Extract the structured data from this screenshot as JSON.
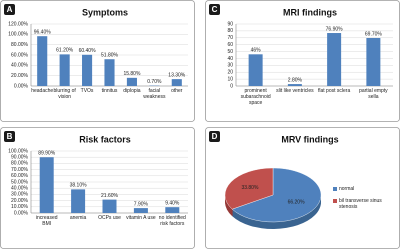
{
  "chart_data": [
    {
      "type": "bar",
      "label": "A",
      "title": "Symptoms",
      "categories": [
        "headache",
        "blurring of vision",
        "TVOs",
        "tinnitus",
        "diplopia",
        "facial weakness",
        "other"
      ],
      "values": [
        96.4,
        61.2,
        60.4,
        51.8,
        15.8,
        0.7,
        13.3
      ],
      "value_labels": [
        "96.40%",
        "61.20%",
        "60.40%",
        "51.80%",
        "15.80%",
        "0.70%",
        "13.30%"
      ],
      "color": "#4f81bd",
      "ylim": [
        0,
        120
      ],
      "yticks": [
        {
          "value": 0,
          "label": "0.00%"
        },
        {
          "value": 20,
          "label": "20.00%"
        },
        {
          "value": 40,
          "label": "40.00%"
        },
        {
          "value": 60,
          "label": "60.00%"
        },
        {
          "value": 80,
          "label": "80.00%"
        },
        {
          "value": 100,
          "label": "100.00%"
        },
        {
          "value": 120,
          "label": "120.00%"
        }
      ],
      "grid": true
    },
    {
      "type": "bar",
      "label": "B",
      "title": "Risk factors",
      "categories": [
        "increased BMI",
        "anemia",
        "OCPs use",
        "vitamin A use",
        "no identified risk factors"
      ],
      "values": [
        89.9,
        38.1,
        21.6,
        7.9,
        9.4
      ],
      "value_labels": [
        "89.90%",
        "38.10%",
        "21.60%",
        "7.90%",
        "9.40%"
      ],
      "color": "#4f81bd",
      "ylim": [
        0,
        100
      ],
      "yticks": [
        {
          "value": 0,
          "label": "0.00%"
        },
        {
          "value": 10,
          "label": "10.00%"
        },
        {
          "value": 20,
          "label": "20.00%"
        },
        {
          "value": 30,
          "label": "30.00%"
        },
        {
          "value": 40,
          "label": "40.00%"
        },
        {
          "value": 50,
          "label": "50.00%"
        },
        {
          "value": 60,
          "label": "60.00%"
        },
        {
          "value": 70,
          "label": "70.00%"
        },
        {
          "value": 80,
          "label": "80.00%"
        },
        {
          "value": 90,
          "label": "90.00%"
        },
        {
          "value": 100,
          "label": "100.00%"
        }
      ],
      "grid": true
    },
    {
      "type": "bar",
      "label": "C",
      "title": "MRI findings",
      "categories": [
        "prominent subarachnoid space",
        "slit like ventricles",
        "flat post sclera",
        "partial empty sella"
      ],
      "values": [
        46,
        2.8,
        76.9,
        69.7
      ],
      "value_labels": [
        "46%",
        "2.80%",
        "76.90%",
        "69.70%"
      ],
      "color": "#4f81bd",
      "ylim": [
        0,
        90
      ],
      "yticks": [
        0,
        10,
        20,
        30,
        40,
        50,
        60,
        70,
        80,
        90
      ],
      "grid": true
    },
    {
      "type": "pie",
      "label": "D",
      "title": "MRV findings",
      "categories": [
        "normal",
        "bil transverse sinus stenosis"
      ],
      "values": [
        66.2,
        33.8
      ],
      "value_labels": [
        "66.20%",
        "33.80%"
      ],
      "colors": [
        "#4f81bd",
        "#c0504d"
      ]
    }
  ]
}
